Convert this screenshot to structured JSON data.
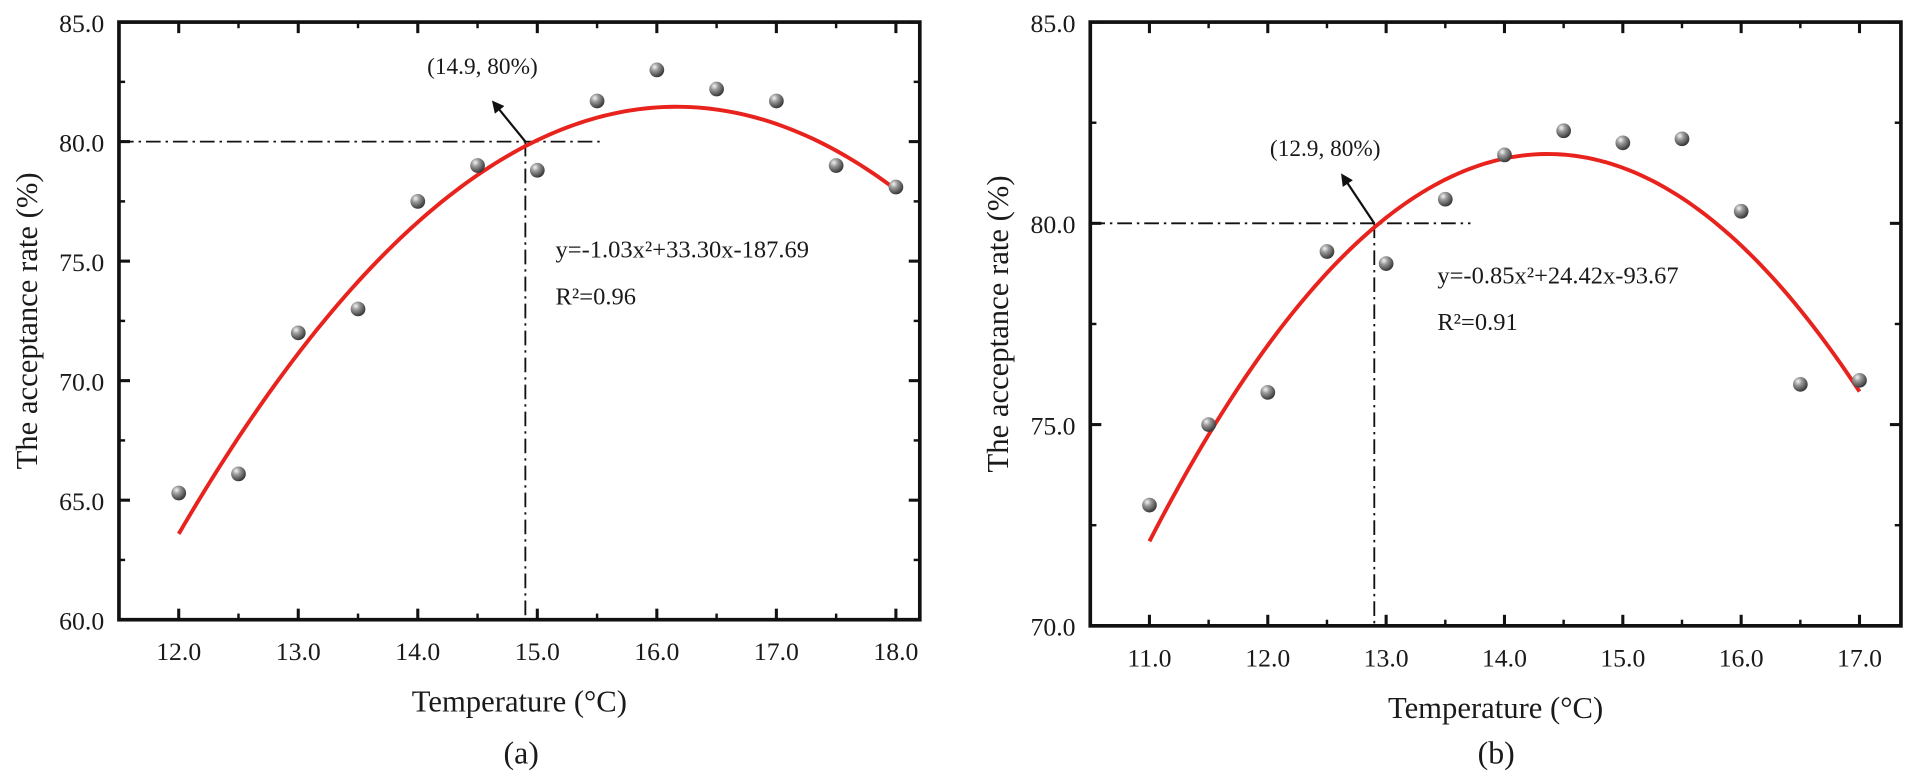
{
  "chart_data": [
    {
      "type": "scatter",
      "caption": "(a)",
      "xlabel": "Temperature (°C)",
      "ylabel": "The acceptance rate (%)",
      "xlim": [
        11.5,
        18.2
      ],
      "ylim": [
        60,
        85
      ],
      "xticks": [
        12,
        13,
        14,
        15,
        16,
        17,
        18
      ],
      "xtick_labels": [
        "12.0",
        "13.0",
        "14.0",
        "15.0",
        "16.0",
        "17.0",
        "18.0"
      ],
      "yticks": [
        60,
        65,
        70,
        75,
        80,
        85
      ],
      "ytick_labels": [
        "60.0",
        "65.0",
        "70.0",
        "75.0",
        "80.0",
        "85.0"
      ],
      "grid": false,
      "points": {
        "x": [
          12.0,
          12.5,
          13.0,
          13.5,
          14.0,
          14.5,
          15.0,
          15.5,
          16.0,
          16.5,
          17.0,
          17.5,
          18.0
        ],
        "y": [
          65.3,
          66.1,
          72.0,
          73.0,
          77.5,
          79.0,
          78.8,
          81.7,
          83.0,
          82.2,
          81.7,
          79.0,
          78.1
        ]
      },
      "fit": {
        "a": -1.03,
        "b": 33.3,
        "c": -187.69,
        "x_range": [
          12,
          18
        ],
        "color": "#e8231e"
      },
      "equation": "y=-1.03x²+33.30x-187.69",
      "r2": "R²=0.96",
      "marker_point": {
        "x": 14.9,
        "y": 80
      },
      "marker_label": "(14.9, 80%)"
    },
    {
      "type": "scatter",
      "caption": "(b)",
      "xlabel": "Temperature (°C)",
      "ylabel": "The acceptance rate (%)",
      "xlim": [
        10.5,
        17.35
      ],
      "ylim": [
        70,
        85
      ],
      "xticks": [
        11,
        12,
        13,
        14,
        15,
        16,
        17
      ],
      "xtick_labels": [
        "11.0",
        "12.0",
        "13.0",
        "14.0",
        "15.0",
        "16.0",
        "17.0"
      ],
      "yticks": [
        70,
        75,
        80,
        85
      ],
      "ytick_labels": [
        "70.0",
        "75.0",
        "80.0",
        "85.0"
      ],
      "grid": false,
      "points": {
        "x": [
          11.0,
          11.5,
          12.0,
          12.5,
          13.0,
          13.5,
          14.0,
          14.5,
          15.0,
          15.5,
          16.0,
          16.5,
          17.0
        ],
        "y": [
          73.0,
          75.0,
          75.8,
          79.3,
          79.0,
          80.6,
          81.7,
          82.3,
          82.0,
          82.1,
          80.3,
          76.0,
          76.1
        ]
      },
      "fit": {
        "a": -0.85,
        "b": 24.42,
        "c": -93.67,
        "x_range": [
          11,
          17
        ],
        "color": "#e8231e"
      },
      "equation": "y=-0.85x²+24.42x-93.67",
      "r2": "R²=0.91",
      "marker_point": {
        "x": 12.9,
        "y": 80
      },
      "marker_label": "(12.9, 80%)"
    }
  ]
}
